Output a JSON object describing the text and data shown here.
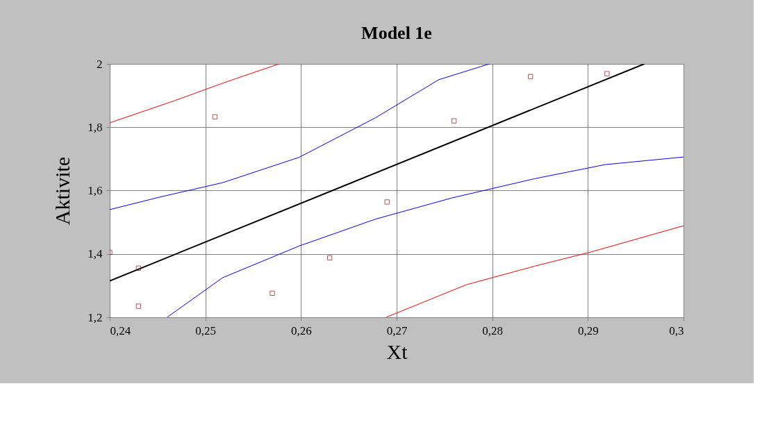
{
  "chart_data": {
    "type": "scatter",
    "title": "Model 1e",
    "xlabel": "Xt",
    "ylabel": "Aktivite",
    "xlim": [
      0.24,
      0.3
    ],
    "ylim": [
      1.2,
      2
    ],
    "xticks": [
      {
        "value": 0.24,
        "label": "0,24"
      },
      {
        "value": 0.25,
        "label": "0,25"
      },
      {
        "value": 0.26,
        "label": "0,26"
      },
      {
        "value": 0.27,
        "label": "0,27"
      },
      {
        "value": 0.28,
        "label": "0,28"
      },
      {
        "value": 0.29,
        "label": "0,29"
      },
      {
        "value": 0.3,
        "label": "0,3"
      }
    ],
    "yticks": [
      {
        "value": 1.2,
        "label": "1,2"
      },
      {
        "value": 1.4,
        "label": "1,4"
      },
      {
        "value": 1.6,
        "label": "1,6"
      },
      {
        "value": 1.8,
        "label": "1,8"
      },
      2
    ],
    "grid": true,
    "series": [
      {
        "type": "line",
        "color": "#ff0000",
        "x": [
          0.24,
          0.2468,
          0.2518,
          0.2577
        ],
        "values": [
          1.814,
          1.884,
          1.939,
          2.0
        ]
      },
      {
        "type": "line",
        "color": "#ff0000",
        "x": [
          0.2689,
          0.2773,
          0.2845,
          0.2903,
          0.3
        ],
        "values": [
          1.2,
          1.303,
          1.362,
          1.406,
          1.489
        ]
      },
      {
        "type": "line",
        "color": "#0000ff",
        "x": [
          0.24,
          0.2453,
          0.2518,
          0.2598,
          0.2678,
          0.2744,
          0.2797
        ],
        "values": [
          1.54,
          1.58,
          1.625,
          1.705,
          1.83,
          1.95,
          2.0
        ]
      },
      {
        "type": "line",
        "color": "#0000ff",
        "x": [
          0.246,
          0.2518,
          0.2598,
          0.2678,
          0.2758,
          0.2845,
          0.2918,
          0.3
        ],
        "values": [
          1.2,
          1.325,
          1.425,
          1.51,
          1.577,
          1.638,
          1.682,
          1.706
        ]
      },
      {
        "type": "line",
        "color": "#000000",
        "x": [
          0.24,
          0.2959
        ],
        "values": [
          1.315,
          2.0
        ]
      },
      {
        "marker": "square",
        "color": "#a00000",
        "x": [
          0.24,
          0.243,
          0.243,
          0.251,
          0.257,
          0.263,
          0.269,
          0.276,
          0.284,
          0.292
        ],
        "values": [
          1.405,
          1.355,
          1.235,
          1.833,
          1.276,
          1.388,
          1.564,
          1.82,
          1.96,
          1.969
        ]
      }
    ]
  }
}
